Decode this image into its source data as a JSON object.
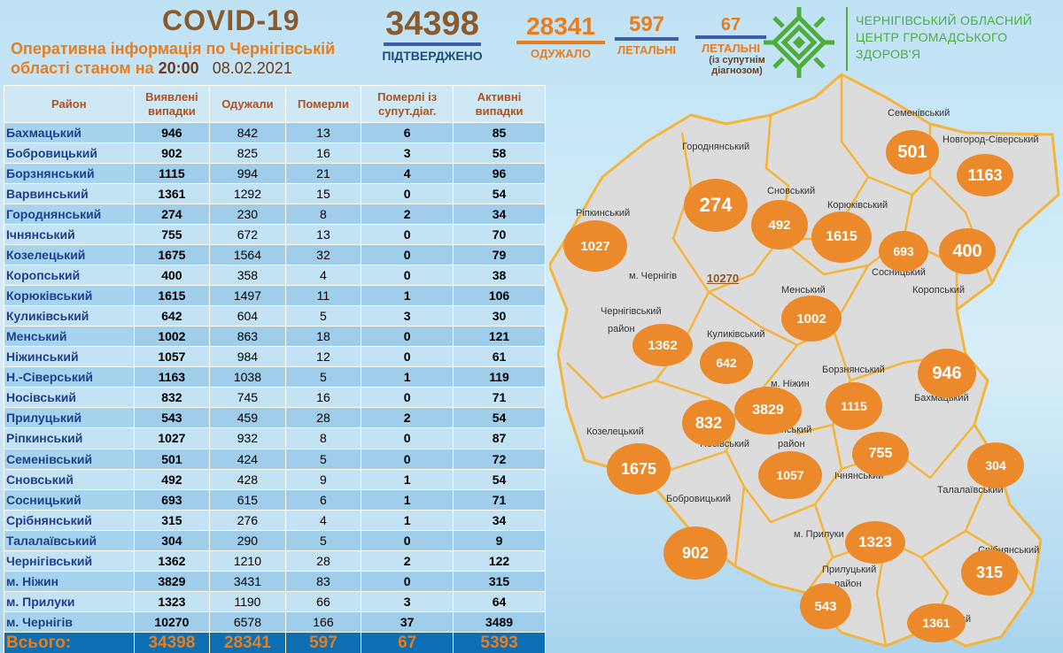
{
  "header": {
    "title": "COVID-19",
    "subtitle_line1": "Оперативна інформація по Чернігівській",
    "subtitle_line2": "області станом на",
    "time": "20:00",
    "date": "08.02.2021"
  },
  "stats": {
    "confirmed": {
      "value": "34398",
      "label": "ПІДТВЕРДЖЕНО"
    },
    "recovered": {
      "value": "28341",
      "label": "ОДУЖАЛО"
    },
    "dead": {
      "value": "597",
      "label": "ЛЕТАЛЬНІ"
    },
    "dead_comorbid": {
      "value": "67",
      "label": "ЛЕТАЛЬНІ",
      "note": "(із супутнім діагнозом)"
    }
  },
  "org": {
    "line1": "ЧЕРНІГІВСЬКИЙ ОБЛАСНИЙ",
    "line2": "ЦЕНТР ГРОМАДСЬКОГО",
    "line3": "ЗДОРОВ'Я",
    "brand_color": "#4fae3a"
  },
  "table": {
    "headers": [
      "Район",
      "Виявлені випадки",
      "Одужали",
      "Померли",
      "Померлі із супут.діаг.",
      "Активні випадки"
    ],
    "rows": [
      [
        "Бахмацький",
        "946",
        "842",
        "13",
        "6",
        "85"
      ],
      [
        "Бобровицький",
        "902",
        "825",
        "16",
        "3",
        "58"
      ],
      [
        "Борзнянський",
        "1115",
        "994",
        "21",
        "4",
        "96"
      ],
      [
        "Варвинський",
        "1361",
        "1292",
        "15",
        "0",
        "54"
      ],
      [
        "Городнянський",
        "274",
        "230",
        "8",
        "2",
        "34"
      ],
      [
        "Ічнянський",
        "755",
        "672",
        "13",
        "0",
        "70"
      ],
      [
        "Козелецький",
        "1675",
        "1564",
        "32",
        "0",
        "79"
      ],
      [
        "Коропський",
        "400",
        "358",
        "4",
        "0",
        "38"
      ],
      [
        "Корюківський",
        "1615",
        "1497",
        "11",
        "1",
        "106"
      ],
      [
        "Куликівський",
        "642",
        "604",
        "5",
        "3",
        "30"
      ],
      [
        "Менський",
        "1002",
        "863",
        "18",
        "0",
        "121"
      ],
      [
        "Ніжинський",
        "1057",
        "984",
        "12",
        "0",
        "61"
      ],
      [
        "Н.-Сіверський",
        "1163",
        "1038",
        "5",
        "1",
        "119"
      ],
      [
        "Носівський",
        "832",
        "745",
        "16",
        "0",
        "71"
      ],
      [
        "Прилуцький",
        "543",
        "459",
        "28",
        "2",
        "54"
      ],
      [
        "Ріпкинський",
        "1027",
        "932",
        "8",
        "0",
        "87"
      ],
      [
        "Семенівський",
        "501",
        "424",
        "5",
        "0",
        "72"
      ],
      [
        "Сновський",
        "492",
        "428",
        "9",
        "1",
        "54"
      ],
      [
        "Сосницький",
        "693",
        "615",
        "6",
        "1",
        "71"
      ],
      [
        "Срібнянський",
        "315",
        "276",
        "4",
        "1",
        "34"
      ],
      [
        "Талалаївський",
        "304",
        "290",
        "5",
        "0",
        "9"
      ],
      [
        "Чернігівський",
        "1362",
        "1210",
        "28",
        "2",
        "122"
      ],
      [
        "м. Ніжин",
        "3829",
        "3431",
        "83",
        "0",
        "315"
      ],
      [
        "м. Прилуки",
        "1323",
        "1190",
        "66",
        "3",
        "64"
      ],
      [
        "м. Чернігів",
        "10270",
        "6578",
        "166",
        "37",
        "3489"
      ]
    ],
    "total": [
      "Всього:",
      "34398",
      "28341",
      "597",
      "67",
      "5393"
    ]
  },
  "map": {
    "labels": [
      {
        "text": "Семенівський"
      },
      {
        "text": "Новгород-Сіверський"
      },
      {
        "text": "Городнянський"
      },
      {
        "text": "Сновський"
      },
      {
        "text": "Корюківський"
      },
      {
        "text": "Ріпкинський"
      },
      {
        "text": "Сосницький"
      },
      {
        "text": "Коропський"
      },
      {
        "text": "м. Чернігів"
      },
      {
        "text": "Менський"
      },
      {
        "text": "Чернігівський"
      },
      {
        "text": "район"
      },
      {
        "text": "Куликівський"
      },
      {
        "text": "Борзнянський"
      },
      {
        "text": "м. Ніжин"
      },
      {
        "text": "Бахмацький"
      },
      {
        "text": "Козелецький"
      },
      {
        "text": "Ніжинський"
      },
      {
        "text": "район"
      },
      {
        "text": "Носівський"
      },
      {
        "text": "Ічнянський"
      },
      {
        "text": "Талалаївський"
      },
      {
        "text": "Бобровицький"
      },
      {
        "text": "м. Прилуки"
      },
      {
        "text": "Срібнянський"
      },
      {
        "text": "Прилуцький"
      },
      {
        "text": "район"
      },
      {
        "text": "Варвинський"
      }
    ],
    "bubbles": [
      {
        "value": "501"
      },
      {
        "value": "1163"
      },
      {
        "value": "274"
      },
      {
        "value": "492"
      },
      {
        "value": "1615"
      },
      {
        "value": "693"
      },
      {
        "value": "400"
      },
      {
        "value": "1027"
      },
      {
        "value": "10270"
      },
      {
        "value": "1002"
      },
      {
        "value": "1362"
      },
      {
        "value": "642"
      },
      {
        "value": "946"
      },
      {
        "value": "832"
      },
      {
        "value": "3829"
      },
      {
        "value": "1115"
      },
      {
        "value": "755"
      },
      {
        "value": "1675"
      },
      {
        "value": "1057"
      },
      {
        "value": "304"
      },
      {
        "value": "1323"
      },
      {
        "value": "902"
      },
      {
        "value": "315"
      },
      {
        "value": "543"
      },
      {
        "value": "1361"
      }
    ],
    "bubble_color": "#ec8a2b",
    "border_color": "#f5b43a"
  }
}
